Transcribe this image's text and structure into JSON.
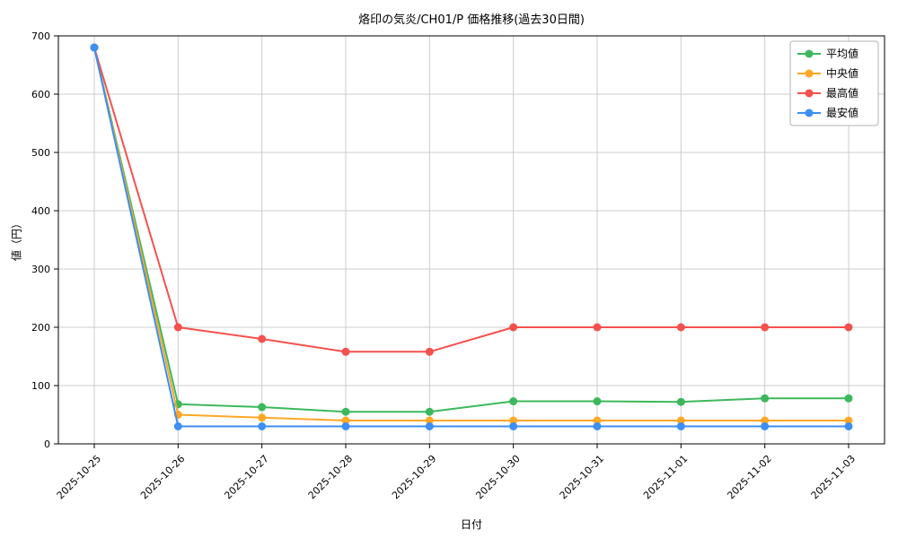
{
  "chart_data": {
    "type": "line",
    "title": "烙印の気炎/CH01/P 価格推移(過去30日間)",
    "xlabel": "日付",
    "ylabel": "値（円）",
    "x": [
      "2025-10-25",
      "2025-10-26",
      "2025-10-27",
      "2025-10-28",
      "2025-10-29",
      "2025-10-30",
      "2025-10-31",
      "2025-11-01",
      "2025-11-02",
      "2025-11-03"
    ],
    "ylim": [
      0,
      700
    ],
    "ytick_step": 100,
    "grid": true,
    "legend_position": "upper right",
    "series": [
      {
        "name": "平均値",
        "color": "#3cb85c",
        "values": [
          680,
          68,
          63,
          55,
          55,
          73,
          73,
          72,
          78,
          78
        ]
      },
      {
        "name": "中央値",
        "color": "#ffa726",
        "values": [
          680,
          50,
          45,
          40,
          40,
          40,
          40,
          40,
          40,
          40
        ]
      },
      {
        "name": "最高値",
        "color": "#f4514e",
        "values": [
          680,
          200,
          180,
          158,
          158,
          200,
          200,
          200,
          200,
          200
        ]
      },
      {
        "name": "最安値",
        "color": "#3d8ef5",
        "values": [
          680,
          30,
          30,
          30,
          30,
          30,
          30,
          30,
          30,
          30
        ]
      }
    ]
  }
}
